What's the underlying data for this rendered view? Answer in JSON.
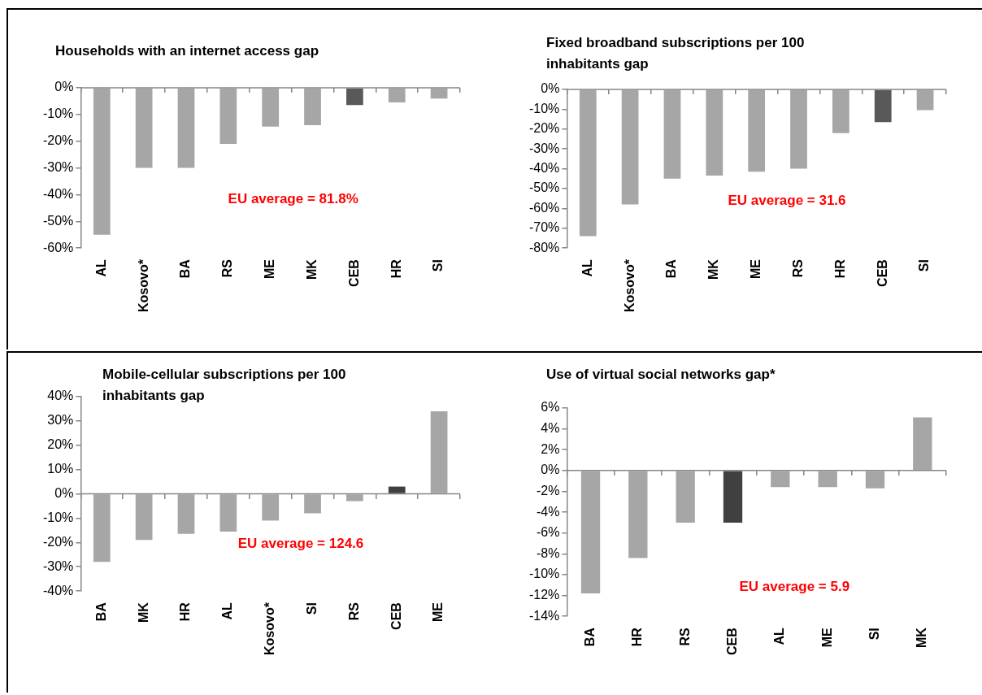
{
  "chart_data": [
    {
      "type": "bar",
      "title": "Households with an internet access gap",
      "categories": [
        "AL",
        "Kosovo*",
        "BA",
        "RS",
        "ME",
        "MK",
        "CEB",
        "HR",
        "SI"
      ],
      "values": [
        -55,
        -30,
        -30,
        -21,
        -14.5,
        -14,
        -6.5,
        -5.5,
        -4
      ],
      "colors": [
        "#a6a6a6",
        "#a6a6a6",
        "#a6a6a6",
        "#a6a6a6",
        "#a6a6a6",
        "#a6a6a6",
        "#595959",
        "#a6a6a6",
        "#a6a6a6"
      ],
      "ylim": [
        -60,
        0
      ],
      "yticks": [
        {
          "value": 0,
          "label": "0%"
        },
        {
          "value": -10,
          "label": "-10%"
        },
        {
          "value": -20,
          "label": "-20%"
        },
        {
          "value": -30,
          "label": "-30%"
        },
        {
          "value": -40,
          "label": "-40%"
        },
        {
          "value": -50,
          "label": "-50%"
        },
        {
          "value": -60,
          "label": "-60%"
        }
      ],
      "annotations": [
        "EU average = 81.8%"
      ],
      "ref_lines": [
        {
          "axis": "y",
          "value": 0,
          "color": "#868686"
        }
      ],
      "grid": false,
      "legend": false
    },
    {
      "type": "bar",
      "title": "Fixed broadband subscriptions per 100 inhabitants gap",
      "categories": [
        "AL",
        "Kosovo*",
        "BA",
        "MK",
        "ME",
        "RS",
        "HR",
        "CEB",
        "SI"
      ],
      "values": [
        -74,
        -58,
        -45,
        -43.5,
        -41.5,
        -40,
        -22,
        -16.5,
        -10.5
      ],
      "colors": [
        "#a6a6a6",
        "#a6a6a6",
        "#a6a6a6",
        "#a6a6a6",
        "#a6a6a6",
        "#a6a6a6",
        "#a6a6a6",
        "#595959",
        "#a6a6a6"
      ],
      "ylim": [
        -80,
        0
      ],
      "yticks": [
        {
          "value": 0,
          "label": "0%"
        },
        {
          "value": -10,
          "label": "-10%"
        },
        {
          "value": -20,
          "label": "-20%"
        },
        {
          "value": -30,
          "label": "-30%"
        },
        {
          "value": -40,
          "label": "-40%"
        },
        {
          "value": -50,
          "label": "-50%"
        },
        {
          "value": -60,
          "label": "-60%"
        },
        {
          "value": -70,
          "label": "-70%"
        },
        {
          "value": -80,
          "label": "-80%"
        }
      ],
      "annotations": [
        "EU average = 31.6"
      ],
      "ref_lines": [
        {
          "axis": "y",
          "value": 0,
          "color": "#868686"
        }
      ],
      "grid": false,
      "legend": false
    },
    {
      "type": "bar",
      "title": "Mobile-cellular subscriptions per 100 inhabitants gap",
      "categories": [
        "BA",
        "MK",
        "HR",
        "AL",
        "Kosovo*",
        "SI",
        "RS",
        "CEB",
        "ME"
      ],
      "values": [
        -28,
        -19,
        -16.5,
        -15.5,
        -11,
        -8,
        -3,
        3,
        34
      ],
      "colors": [
        "#a6a6a6",
        "#a6a6a6",
        "#a6a6a6",
        "#a6a6a6",
        "#a6a6a6",
        "#a6a6a6",
        "#a6a6a6",
        "#404040",
        "#a6a6a6"
      ],
      "ylim": [
        -40,
        40
      ],
      "yticks": [
        {
          "value": 40,
          "label": "40%"
        },
        {
          "value": 30,
          "label": "30%"
        },
        {
          "value": 20,
          "label": "20%"
        },
        {
          "value": 10,
          "label": "10%"
        },
        {
          "value": 0,
          "label": "0%"
        },
        {
          "value": -10,
          "label": "-10%"
        },
        {
          "value": -20,
          "label": "-20%"
        },
        {
          "value": -30,
          "label": "-30%"
        },
        {
          "value": -40,
          "label": "-40%"
        }
      ],
      "annotations": [
        "EU average = 124.6"
      ],
      "ref_lines": [
        {
          "axis": "y",
          "value": 0,
          "color": "#868686"
        }
      ],
      "grid": false,
      "legend": false
    },
    {
      "type": "bar",
      "title": "Use of virtual social networks gap*",
      "categories": [
        "BA",
        "HR",
        "RS",
        "CEB",
        "AL",
        "ME",
        "SI",
        "MK"
      ],
      "values": [
        -11.8,
        -8.4,
        -5,
        -5,
        -1.6,
        -1.6,
        -1.7,
        5.1
      ],
      "colors": [
        "#a6a6a6",
        "#a6a6a6",
        "#a6a6a6",
        "#404040",
        "#a6a6a6",
        "#a6a6a6",
        "#a6a6a6",
        "#a6a6a6"
      ],
      "ylim": [
        -14,
        6
      ],
      "yticks": [
        {
          "value": 6,
          "label": "6%"
        },
        {
          "value": 4,
          "label": "4%"
        },
        {
          "value": 2,
          "label": "2%"
        },
        {
          "value": 0,
          "label": "0%"
        },
        {
          "value": -2,
          "label": "-2%"
        },
        {
          "value": -4,
          "label": "-4%"
        },
        {
          "value": -6,
          "label": "-6%"
        },
        {
          "value": -8,
          "label": "-8%"
        },
        {
          "value": -10,
          "label": "-10%"
        },
        {
          "value": -12,
          "label": "-12%"
        },
        {
          "value": -14,
          "label": "-14%"
        }
      ],
      "annotations": [
        "EU average = 5.9"
      ],
      "ref_lines": [
        {
          "axis": "y",
          "value": 0,
          "color": "#868686"
        }
      ],
      "grid": false,
      "legend": false
    }
  ]
}
